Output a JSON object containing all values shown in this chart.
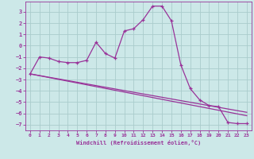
{
  "xlabel": "Windchill (Refroidissement éolien,°C)",
  "ylabel": "",
  "bg_color": "#cce8e8",
  "line_color": "#993399",
  "grid_color": "#aacccc",
  "ylim": [
    -7.5,
    3.9
  ],
  "xlim": [
    -0.5,
    23.5
  ],
  "yticks": [
    -7,
    -6,
    -5,
    -4,
    -3,
    -2,
    -1,
    0,
    1,
    2,
    3
  ],
  "xticks": [
    0,
    1,
    2,
    3,
    4,
    5,
    6,
    7,
    8,
    9,
    10,
    11,
    12,
    13,
    14,
    15,
    16,
    17,
    18,
    19,
    20,
    21,
    22,
    23
  ],
  "curve1_x": [
    0,
    1,
    2,
    3,
    4,
    5,
    6,
    7,
    8,
    9,
    10,
    11,
    12,
    13,
    14,
    15,
    16,
    17,
    18,
    19,
    20,
    21,
    22,
    23
  ],
  "curve1_y": [
    -2.5,
    -1.0,
    -1.1,
    -1.4,
    -1.5,
    -1.5,
    -1.3,
    0.3,
    -0.7,
    -1.1,
    1.3,
    1.5,
    2.3,
    3.5,
    3.5,
    2.2,
    -1.7,
    -3.8,
    -4.8,
    -5.3,
    -5.4,
    -6.8,
    -6.9,
    -6.9
  ],
  "line2_x": [
    0,
    23
  ],
  "line2_y": [
    -2.5,
    -5.9
  ],
  "line3_x": [
    0,
    23
  ],
  "line3_y": [
    -2.5,
    -6.2
  ]
}
